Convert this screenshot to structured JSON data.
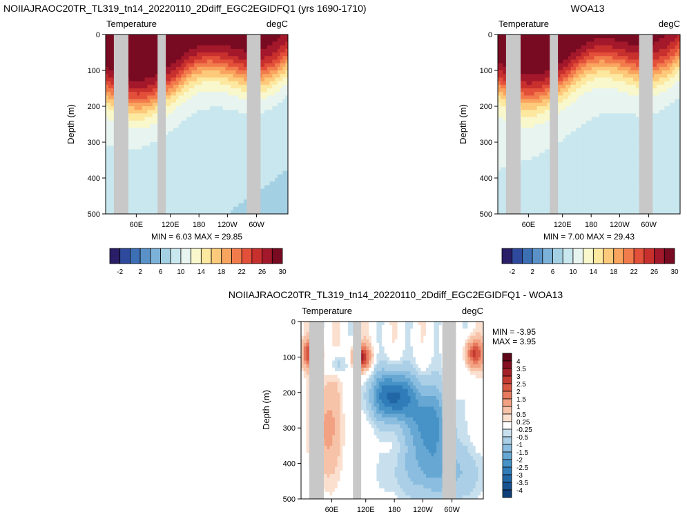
{
  "chart_data": [
    {
      "type": "heatmap",
      "id": "model",
      "title": "NOIIAJRAOC20TR_TL319_tn14_20220110_2Ddiff_EGC2EGIDFQ1 (yrs 1690-1710)",
      "left_label": "Temperature",
      "right_label": "degC",
      "ylabel": "Depth (m)",
      "ylim": [
        500,
        0
      ],
      "yticks": [
        0,
        100,
        200,
        300,
        400,
        500
      ],
      "xticks": [
        "60E",
        "120E",
        "180",
        "120W",
        "60W"
      ],
      "min_max_text": "MIN =   6.03   MAX =  29.85",
      "colorbar_labels": [
        "-2",
        "2",
        "6",
        "10",
        "14",
        "18",
        "22",
        "26",
        "30"
      ]
    },
    {
      "type": "heatmap",
      "id": "obs",
      "title": "WOA13",
      "left_label": "Temperature",
      "right_label": "degC",
      "ylabel": "Depth (m)",
      "ylim": [
        500,
        0
      ],
      "yticks": [
        0,
        100,
        200,
        300,
        400,
        500
      ],
      "xticks": [
        "60E",
        "120E",
        "180",
        "120W",
        "60W"
      ],
      "min_max_text": "MIN =   7.00   MAX =  29.43",
      "colorbar_labels": [
        "-2",
        "2",
        "6",
        "10",
        "14",
        "18",
        "22",
        "26",
        "30"
      ]
    },
    {
      "type": "heatmap",
      "id": "diff",
      "title": "NOIIAJRAOC20TR_TL319_tn14_20220110_2Ddiff_EGC2EGIDFQ1 - WOA13",
      "left_label": "Temperature",
      "right_label": "degC",
      "ylabel": "Depth (m)",
      "ylim": [
        500,
        0
      ],
      "yticks": [
        0,
        100,
        200,
        300,
        400,
        500
      ],
      "xticks": [
        "60E",
        "120E",
        "180",
        "120W",
        "60W"
      ],
      "min_text": "MIN =  -3.95",
      "max_text": "MAX =   3.95",
      "colorbar_labels": [
        "4",
        "3.5",
        "3",
        "2.5",
        "2",
        "1.5",
        "1",
        "0.5",
        "0.25",
        "-0.25",
        "-0.5",
        "-1",
        "-1.5",
        "-2",
        "-2.5",
        "-3",
        "-3.5",
        "-4"
      ]
    }
  ],
  "colors": {
    "temperature_scale": [
      "#2a1e68",
      "#2f4a9c",
      "#3d6fb4",
      "#5a92c8",
      "#7db2d8",
      "#a4d0e3",
      "#c9e7ee",
      "#e8f4ef",
      "#f8f8cc",
      "#fde8a0",
      "#fdc97a",
      "#f9a45f",
      "#f27b4c",
      "#e3503a",
      "#c8302e",
      "#a3182a",
      "#780a22"
    ],
    "diff_scale": [
      "#0e3f78",
      "#17518f",
      "#2166a5",
      "#2f7cb9",
      "#4792c7",
      "#66a8d3",
      "#8abddf",
      "#aacfe6",
      "#c8e0ee",
      "#ffffff",
      "#fbe0d0",
      "#f7c3a8",
      "#f2a182",
      "#e87b5f",
      "#d85743",
      "#c33a31",
      "#a52128",
      "#840f21",
      "#5f0718"
    ],
    "land": "#c8c8c8"
  }
}
